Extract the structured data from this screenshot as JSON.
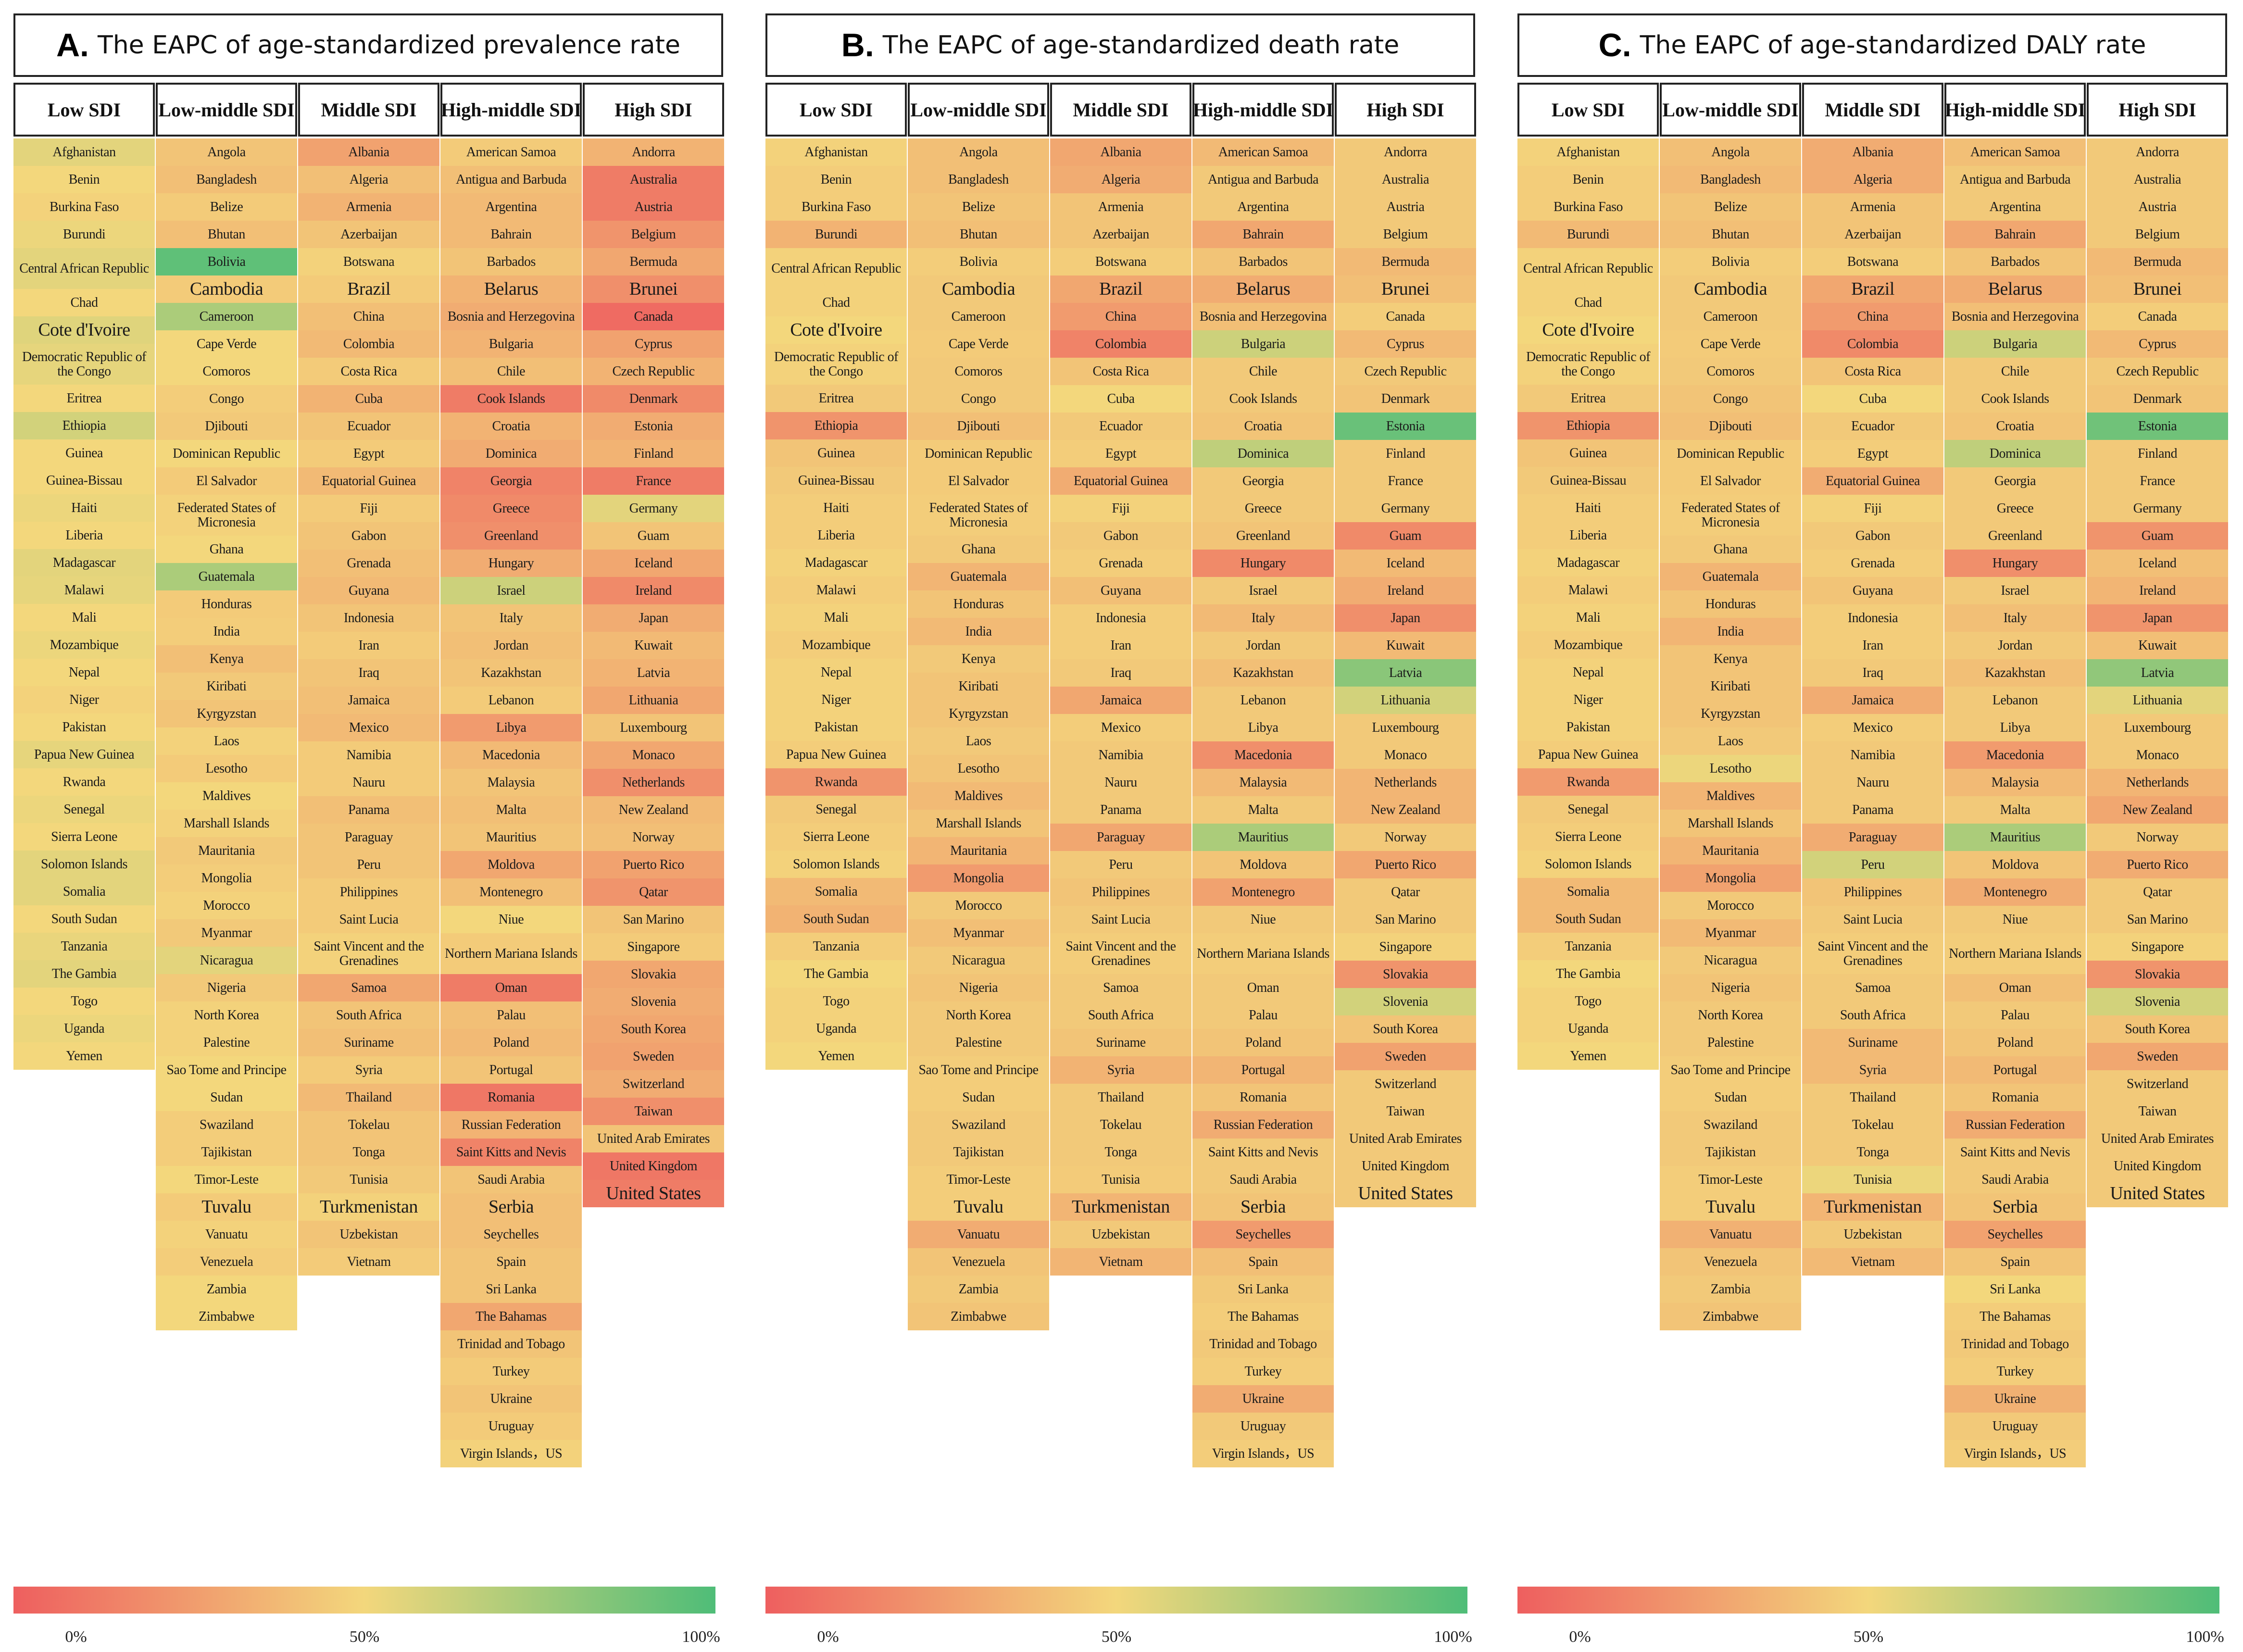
{
  "colors": {
    "low": "#ee5f5f",
    "mid": "#f3d77c",
    "high": "#4fbd78"
  },
  "colorbar_ticks": [
    "0%",
    "50%",
    "100%"
  ],
  "column_headers": [
    "Low SDI",
    "Low-middle SDI",
    "Middle SDI",
    "High-middle SDI",
    "High SDI"
  ],
  "countries": [
    [
      "Afghanistan",
      "Benin",
      "Burkina Faso",
      "Burundi",
      "Central African Republic",
      "Chad",
      "Cote d'Ivoire",
      "Democratic Republic of the Congo",
      "Eritrea",
      "Ethiopia",
      "Guinea",
      "Guinea-Bissau",
      "Haiti",
      "Liberia",
      "Madagascar",
      "Malawi",
      "Mali",
      "Mozambique",
      "Nepal",
      "Niger",
      "Pakistan",
      "Papua New Guinea",
      "Rwanda",
      "Senegal",
      "Sierra Leone",
      "Solomon Islands",
      "Somalia",
      "South Sudan",
      "Tanzania",
      "The Gambia",
      "Togo",
      "Uganda",
      "Yemen"
    ],
    [
      "Angola",
      "Bangladesh",
      "Belize",
      "Bhutan",
      "Bolivia",
      "Cambodia",
      "Cameroon",
      "Cape Verde",
      "Comoros",
      "Congo",
      "Djibouti",
      "Dominican Republic",
      "El Salvador",
      "Federated States of Micronesia",
      "Ghana",
      "Guatemala",
      "Honduras",
      "India",
      "Kenya",
      "Kiribati",
      "Kyrgyzstan",
      "Laos",
      "Lesotho",
      "Maldives",
      "Marshall Islands",
      "Mauritania",
      "Mongolia",
      "Morocco",
      "Myanmar",
      "Nicaragua",
      "Nigeria",
      "North Korea",
      "Palestine",
      "Sao Tome and Principe",
      "Sudan",
      "Swaziland",
      "Tajikistan",
      "Timor-Leste",
      "Tuvalu",
      "Vanuatu",
      "Venezuela",
      "Zambia",
      "Zimbabwe"
    ],
    [
      "Albania",
      "Algeria",
      "Armenia",
      "Azerbaijan",
      "Botswana",
      "Brazil",
      "China",
      "Colombia",
      "Costa Rica",
      "Cuba",
      "Ecuador",
      "Egypt",
      "Equatorial Guinea",
      "Fiji",
      "Gabon",
      "Grenada",
      "Guyana",
      "Indonesia",
      "Iran",
      "Iraq",
      "Jamaica",
      "Mexico",
      "Namibia",
      "Nauru",
      "Panama",
      "Paraguay",
      "Peru",
      "Philippines",
      "Saint Lucia",
      "Saint Vincent and the Grenadines",
      "Samoa",
      "South Africa",
      "Suriname",
      "Syria",
      "Thailand",
      "Tokelau",
      "Tonga",
      "Tunisia",
      "Turkmenistan",
      "Uzbekistan",
      "Vietnam"
    ],
    [
      "American Samoa",
      "Antigua and Barbuda",
      "Argentina",
      "Bahrain",
      "Barbados",
      "Belarus",
      "Bosnia and Herzegovina",
      "Bulgaria",
      "Chile",
      "Cook Islands",
      "Croatia",
      "Dominica",
      "Georgia",
      "Greece",
      "Greenland",
      "Hungary",
      "Israel",
      "Italy",
      "Jordan",
      "Kazakhstan",
      "Lebanon",
      "Libya",
      "Macedonia",
      "Malaysia",
      "Malta",
      "Mauritius",
      "Moldova",
      "Montenegro",
      "Niue",
      "Northern Mariana Islands",
      "Oman",
      "Palau",
      "Poland",
      "Portugal",
      "Romania",
      "Russian Federation",
      "Saint Kitts and Nevis",
      "Saudi Arabia",
      "Serbia",
      "Seychelles",
      "Spain",
      "Sri Lanka",
      "The Bahamas",
      "Trinidad and Tobago",
      "Turkey",
      "Ukraine",
      "Uruguay",
      "Virgin Islands，US"
    ],
    [
      "Andorra",
      "Australia",
      "Austria",
      "Belgium",
      "Bermuda",
      "Brunei",
      "Canada",
      "Cyprus",
      "Czech Republic",
      "Denmark",
      "Estonia",
      "Finland",
      "France",
      "Germany",
      "Guam",
      "Iceland",
      "Ireland",
      "Japan",
      "Kuwait",
      "Latvia",
      "Lithuania",
      "Luxembourg",
      "Monaco",
      "Netherlands",
      "New Zealand",
      "Norway",
      "Puerto Rico",
      "Qatar",
      "San Marino",
      "Singapore",
      "Slovakia",
      "Slovenia",
      "South Korea",
      "Sweden",
      "Switzerland",
      "Taiwan",
      "United Arab Emirates",
      "United Kingdom",
      "United States"
    ]
  ],
  "chart_data": [
    {
      "type": "heatmap",
      "letter": "A.",
      "title": "The EAPC of age-standardized prevalence rate",
      "color_scale": {
        "min_label": "0%",
        "mid_label": "50%",
        "max_label": "100%"
      },
      "values": [
        [
          0.55,
          0.5,
          0.48,
          0.52,
          0.55,
          0.5,
          0.56,
          0.54,
          0.5,
          0.6,
          0.5,
          0.5,
          0.52,
          0.5,
          0.55,
          0.54,
          0.5,
          0.52,
          0.5,
          0.48,
          0.5,
          0.54,
          0.5,
          0.52,
          0.5,
          0.55,
          0.55,
          0.5,
          0.53,
          0.55,
          0.5,
          0.52,
          0.5
        ],
        [
          0.42,
          0.4,
          0.45,
          0.4,
          0.95,
          0.45,
          0.72,
          0.5,
          0.5,
          0.46,
          0.44,
          0.5,
          0.45,
          0.48,
          0.5,
          0.72,
          0.45,
          0.46,
          0.4,
          0.44,
          0.42,
          0.48,
          0.45,
          0.5,
          0.48,
          0.44,
          0.46,
          0.48,
          0.44,
          0.55,
          0.44,
          0.48,
          0.48,
          0.5,
          0.5,
          0.46,
          0.46,
          0.5,
          0.45,
          0.48,
          0.46,
          0.5,
          0.5
        ],
        [
          0.28,
          0.4,
          0.35,
          0.42,
          0.48,
          0.45,
          0.4,
          0.38,
          0.45,
          0.35,
          0.42,
          0.45,
          0.38,
          0.45,
          0.42,
          0.4,
          0.38,
          0.42,
          0.45,
          0.42,
          0.4,
          0.38,
          0.45,
          0.45,
          0.4,
          0.42,
          0.42,
          0.45,
          0.45,
          0.48,
          0.3,
          0.42,
          0.4,
          0.45,
          0.38,
          0.42,
          0.42,
          0.44,
          0.48,
          0.42,
          0.45
        ],
        [
          0.45,
          0.4,
          0.38,
          0.38,
          0.42,
          0.35,
          0.32,
          0.35,
          0.4,
          0.12,
          0.35,
          0.32,
          0.15,
          0.18,
          0.2,
          0.32,
          0.62,
          0.42,
          0.4,
          0.42,
          0.45,
          0.25,
          0.38,
          0.42,
          0.4,
          0.42,
          0.3,
          0.4,
          0.5,
          0.45,
          0.12,
          0.4,
          0.38,
          0.42,
          0.1,
          0.35,
          0.15,
          0.42,
          0.4,
          0.4,
          0.42,
          0.42,
          0.3,
          0.42,
          0.45,
          0.42,
          0.45,
          0.48
        ],
        [
          0.35,
          0.12,
          0.12,
          0.22,
          0.3,
          0.2,
          0.05,
          0.28,
          0.35,
          0.18,
          0.32,
          0.35,
          0.12,
          0.55,
          0.42,
          0.3,
          0.18,
          0.32,
          0.38,
          0.35,
          0.3,
          0.42,
          0.3,
          0.2,
          0.38,
          0.4,
          0.28,
          0.22,
          0.42,
          0.45,
          0.3,
          0.32,
          0.3,
          0.28,
          0.32,
          0.2,
          0.42,
          0.1,
          0.12
        ]
      ]
    },
    {
      "type": "heatmap",
      "letter": "B.",
      "title": "The EAPC of age-standardized death rate",
      "color_scale": {
        "min_label": "0%",
        "mid_label": "50%",
        "max_label": "100%"
      },
      "values": [
        [
          0.48,
          0.46,
          0.46,
          0.35,
          0.48,
          0.48,
          0.5,
          0.48,
          0.44,
          0.22,
          0.42,
          0.44,
          0.46,
          0.46,
          0.48,
          0.46,
          0.48,
          0.46,
          0.48,
          0.48,
          0.48,
          0.46,
          0.22,
          0.44,
          0.46,
          0.48,
          0.38,
          0.35,
          0.46,
          0.5,
          0.48,
          0.48,
          0.5
        ],
        [
          0.4,
          0.4,
          0.42,
          0.4,
          0.46,
          0.44,
          0.44,
          0.45,
          0.44,
          0.44,
          0.4,
          0.45,
          0.45,
          0.46,
          0.44,
          0.36,
          0.42,
          0.38,
          0.44,
          0.42,
          0.42,
          0.44,
          0.42,
          0.38,
          0.42,
          0.36,
          0.25,
          0.44,
          0.4,
          0.44,
          0.42,
          0.44,
          0.44,
          0.46,
          0.46,
          0.44,
          0.44,
          0.46,
          0.46,
          0.32,
          0.42,
          0.44,
          0.42
        ],
        [
          0.3,
          0.32,
          0.42,
          0.42,
          0.46,
          0.3,
          0.25,
          0.15,
          0.42,
          0.5,
          0.44,
          0.46,
          0.32,
          0.48,
          0.44,
          0.46,
          0.4,
          0.46,
          0.46,
          0.44,
          0.3,
          0.46,
          0.44,
          0.44,
          0.44,
          0.3,
          0.44,
          0.42,
          0.44,
          0.46,
          0.44,
          0.44,
          0.42,
          0.35,
          0.44,
          0.44,
          0.44,
          0.45,
          0.36,
          0.44,
          0.36
        ],
        [
          0.38,
          0.44,
          0.44,
          0.3,
          0.42,
          0.32,
          0.4,
          0.62,
          0.44,
          0.44,
          0.42,
          0.66,
          0.44,
          0.44,
          0.42,
          0.18,
          0.44,
          0.38,
          0.44,
          0.4,
          0.44,
          0.44,
          0.2,
          0.38,
          0.44,
          0.72,
          0.42,
          0.28,
          0.44,
          0.46,
          0.44,
          0.44,
          0.42,
          0.36,
          0.42,
          0.32,
          0.44,
          0.44,
          0.42,
          0.25,
          0.4,
          0.44,
          0.46,
          0.44,
          0.46,
          0.32,
          0.44,
          0.46
        ],
        [
          0.44,
          0.44,
          0.44,
          0.44,
          0.38,
          0.4,
          0.46,
          0.38,
          0.44,
          0.42,
          0.92,
          0.44,
          0.44,
          0.44,
          0.18,
          0.38,
          0.32,
          0.2,
          0.38,
          0.82,
          0.6,
          0.44,
          0.44,
          0.36,
          0.36,
          0.44,
          0.3,
          0.44,
          0.44,
          0.48,
          0.22,
          0.6,
          0.42,
          0.28,
          0.44,
          0.44,
          0.44,
          0.44,
          0.44
        ]
      ]
    },
    {
      "type": "heatmap",
      "letter": "C.",
      "title": "The EAPC of age-standardized DALY rate",
      "color_scale": {
        "min_label": "0%",
        "mid_label": "50%",
        "max_label": "100%"
      },
      "values": [
        [
          0.48,
          0.46,
          0.46,
          0.38,
          0.48,
          0.48,
          0.5,
          0.48,
          0.44,
          0.22,
          0.42,
          0.44,
          0.46,
          0.46,
          0.48,
          0.46,
          0.48,
          0.46,
          0.48,
          0.48,
          0.48,
          0.46,
          0.25,
          0.44,
          0.46,
          0.48,
          0.38,
          0.38,
          0.46,
          0.5,
          0.48,
          0.48,
          0.5
        ],
        [
          0.4,
          0.38,
          0.42,
          0.4,
          0.46,
          0.44,
          0.44,
          0.45,
          0.44,
          0.42,
          0.4,
          0.45,
          0.45,
          0.46,
          0.44,
          0.36,
          0.42,
          0.36,
          0.42,
          0.42,
          0.42,
          0.44,
          0.52,
          0.36,
          0.42,
          0.36,
          0.28,
          0.44,
          0.38,
          0.44,
          0.42,
          0.44,
          0.44,
          0.46,
          0.46,
          0.44,
          0.44,
          0.46,
          0.46,
          0.34,
          0.42,
          0.44,
          0.42
        ],
        [
          0.32,
          0.32,
          0.42,
          0.42,
          0.46,
          0.3,
          0.25,
          0.18,
          0.42,
          0.5,
          0.44,
          0.46,
          0.32,
          0.48,
          0.44,
          0.46,
          0.42,
          0.46,
          0.46,
          0.44,
          0.32,
          0.46,
          0.44,
          0.44,
          0.44,
          0.32,
          0.6,
          0.42,
          0.44,
          0.46,
          0.44,
          0.44,
          0.38,
          0.38,
          0.44,
          0.44,
          0.44,
          0.52,
          0.36,
          0.44,
          0.38
        ],
        [
          0.4,
          0.44,
          0.44,
          0.3,
          0.42,
          0.32,
          0.4,
          0.62,
          0.44,
          0.44,
          0.42,
          0.66,
          0.44,
          0.44,
          0.44,
          0.2,
          0.44,
          0.4,
          0.44,
          0.4,
          0.44,
          0.44,
          0.25,
          0.38,
          0.44,
          0.72,
          0.42,
          0.32,
          0.44,
          0.46,
          0.4,
          0.44,
          0.42,
          0.38,
          0.42,
          0.32,
          0.44,
          0.44,
          0.42,
          0.28,
          0.42,
          0.5,
          0.46,
          0.44,
          0.46,
          0.34,
          0.44,
          0.46
        ],
        [
          0.44,
          0.44,
          0.44,
          0.44,
          0.38,
          0.4,
          0.46,
          0.38,
          0.44,
          0.42,
          0.9,
          0.44,
          0.44,
          0.44,
          0.22,
          0.4,
          0.36,
          0.22,
          0.4,
          0.8,
          0.55,
          0.44,
          0.44,
          0.36,
          0.3,
          0.44,
          0.32,
          0.44,
          0.44,
          0.48,
          0.22,
          0.6,
          0.42,
          0.3,
          0.44,
          0.44,
          0.44,
          0.44,
          0.44
        ]
      ]
    }
  ]
}
